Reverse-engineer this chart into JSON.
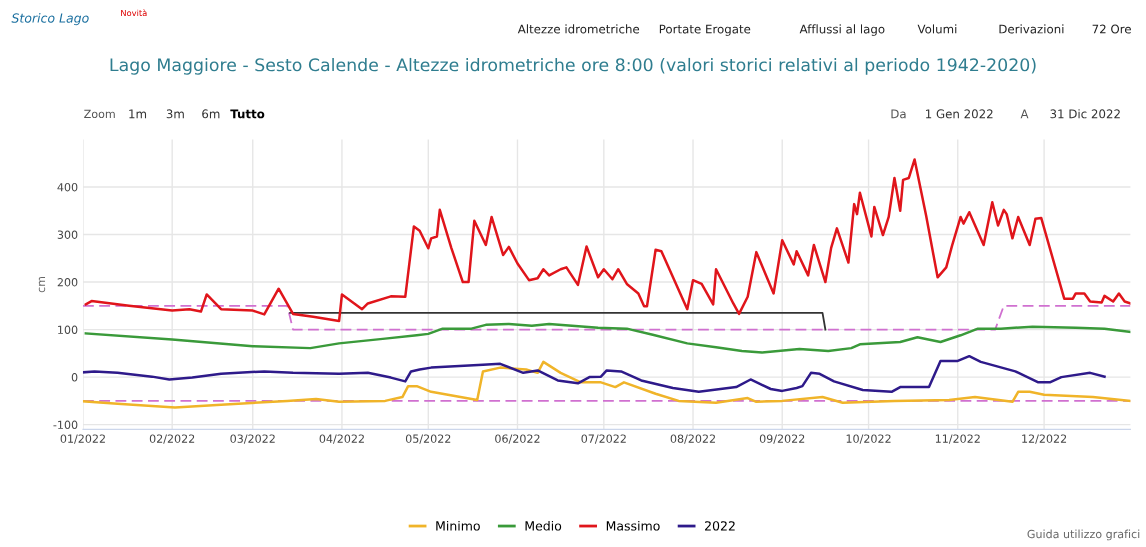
{
  "chart_data": {
    "type": "line",
    "title": "Lago Maggiore - Sesto Calende - Altezze idrometriche ore 8:00 (valori storici relativi al periodo 1942-2020)",
    "ylabel": "cm",
    "xlim": [
      "2022-01-01",
      "2022-12-31"
    ],
    "xticks": [
      {
        "value": "2022-01-01",
        "label": "01/2022"
      },
      {
        "value": "2022-02-01",
        "label": "02/2022"
      },
      {
        "value": "2022-03-01",
        "label": "03/2022"
      },
      {
        "value": "2022-04-01",
        "label": "04/2022"
      },
      {
        "value": "2022-05-01",
        "label": "05/2022"
      },
      {
        "value": "2022-06-01",
        "label": "06/2022"
      },
      {
        "value": "2022-07-01",
        "label": "07/2022"
      },
      {
        "value": "2022-08-01",
        "label": "08/2022"
      },
      {
        "value": "2022-09-01",
        "label": "09/2022"
      },
      {
        "value": "2022-10-01",
        "label": "10/2022"
      },
      {
        "value": "2022-11-01",
        "label": "11/2022"
      },
      {
        "value": "2022-12-01",
        "label": "12/2022"
      }
    ],
    "ylim": [
      -110,
      500
    ],
    "yticks": [
      -100,
      0,
      100,
      200,
      300,
      400
    ],
    "grid": true,
    "legend": "bottom",
    "marker": "none",
    "annotations": [
      "Storico Lago",
      "Novità",
      "Altezze idrometriche",
      "Portate Erogate",
      "Afflussi al lago",
      "Volumi",
      "Derivazioni",
      "72 Ore",
      "Zoom",
      "1m",
      "3m",
      "6m",
      "Tutto",
      "Da",
      "1 Gen 2022",
      "A",
      "31 Dic 2022",
      "Guida utilizzo grafici"
    ],
    "series": [
      {
        "color": "#d070d0",
        "line_style": "dashed",
        "x": [
          "2022-01-01",
          "2022-03-13",
          "2022-03-15",
          "2022-11-14",
          "2022-11-17",
          "2022-12-31"
        ],
        "values": [
          150,
          150,
          100,
          100,
          150,
          150
        ]
      },
      {
        "color": "#d070d0",
        "line_style": "dashed",
        "x": [
          "2022-01-01",
          "2022-12-31"
        ],
        "values": [
          -50,
          -50
        ]
      },
      {
        "color": "#333333",
        "line_style": "solid",
        "x": [
          "2022-03-14",
          "2022-09-15",
          "2022-09-16"
        ],
        "values": [
          135,
          135,
          100
        ]
      },
      {
        "name": "Minimo",
        "color": "#f0b429",
        "line_style": "solid",
        "x": [
          "2022-01-01",
          "2022-01-13",
          "2022-02-02",
          "2022-02-18",
          "2022-03-13",
          "2022-03-23",
          "2022-03-31",
          "2022-04-16",
          "2022-04-22",
          "2022-04-24",
          "2022-04-27",
          "2022-05-02",
          "2022-05-18",
          "2022-05-20",
          "2022-05-26",
          "2022-06-04",
          "2022-06-08",
          "2022-06-10",
          "2022-06-16",
          "2022-06-23",
          "2022-06-30",
          "2022-07-05",
          "2022-07-08",
          "2022-07-19",
          "2022-07-27",
          "2022-08-09",
          "2022-08-20",
          "2022-08-23",
          "2022-09-01",
          "2022-09-15",
          "2022-09-22",
          "2022-10-10",
          "2022-10-29",
          "2022-11-07",
          "2022-11-20",
          "2022-11-22",
          "2022-11-26",
          "2022-12-01",
          "2022-12-18",
          "2022-12-31"
        ],
        "values": [
          -51,
          -56,
          -64,
          -58,
          -50,
          -46,
          -52,
          -50,
          -42,
          -19,
          -19,
          -31,
          -48,
          12,
          20,
          16,
          9,
          32,
          9,
          -11,
          -11,
          -21,
          -11,
          -35,
          -50,
          -54,
          -44,
          -52,
          -50,
          -42,
          -54,
          -50,
          -48,
          -42,
          -52,
          -31,
          -31,
          -37,
          -42,
          -50
        ]
      },
      {
        "name": "Medio",
        "color": "#3a9a3a",
        "line_style": "solid",
        "x": [
          "2022-01-02",
          "2022-02-01",
          "2022-03-01",
          "2022-03-21",
          "2022-03-31",
          "2022-04-16",
          "2022-04-27",
          "2022-05-01",
          "2022-05-06",
          "2022-05-16",
          "2022-05-21",
          "2022-05-29",
          "2022-06-06",
          "2022-06-12",
          "2022-06-29",
          "2022-07-09",
          "2022-07-18",
          "2022-07-30",
          "2022-08-09",
          "2022-08-18",
          "2022-08-25",
          "2022-09-07",
          "2022-09-17",
          "2022-09-25",
          "2022-09-28",
          "2022-10-12",
          "2022-10-18",
          "2022-10-26",
          "2022-11-02",
          "2022-11-08",
          "2022-11-16",
          "2022-11-27",
          "2022-12-12",
          "2022-12-22",
          "2022-12-31"
        ],
        "values": [
          92,
          79,
          65,
          61,
          71,
          81,
          88,
          91,
          102,
          102,
          110,
          112,
          108,
          112,
          104,
          102,
          89,
          71,
          63,
          55,
          52,
          59,
          55,
          61,
          69,
          74,
          84,
          74,
          88,
          102,
          102,
          106,
          104,
          102,
          95
        ]
      },
      {
        "name": "Massimo",
        "color": "#e0151b",
        "line_style": "solid",
        "x": [
          "2022-01-02",
          "2022-01-04",
          "2022-01-17",
          "2022-02-01",
          "2022-02-07",
          "2022-02-11",
          "2022-02-13",
          "2022-02-18",
          "2022-03-01",
          "2022-03-05",
          "2022-03-10",
          "2022-03-15",
          "2022-03-22",
          "2022-03-31",
          "2022-04-01",
          "2022-04-08",
          "2022-04-10",
          "2022-04-18",
          "2022-04-23",
          "2022-04-26",
          "2022-04-28",
          "2022-05-01",
          "2022-05-02",
          "2022-05-04",
          "2022-05-05",
          "2022-05-09",
          "2022-05-13",
          "2022-05-15",
          "2022-05-17",
          "2022-05-21",
          "2022-05-23",
          "2022-05-27",
          "2022-05-29",
          "2022-06-01",
          "2022-06-05",
          "2022-06-08",
          "2022-06-10",
          "2022-06-12",
          "2022-06-16",
          "2022-06-18",
          "2022-06-22",
          "2022-06-25",
          "2022-06-29",
          "2022-07-01",
          "2022-07-04",
          "2022-07-06",
          "2022-07-09",
          "2022-07-13",
          "2022-07-15",
          "2022-07-16",
          "2022-07-19",
          "2022-07-21",
          "2022-07-30",
          "2022-08-01",
          "2022-08-04",
          "2022-08-08",
          "2022-08-09",
          "2022-08-15",
          "2022-08-17",
          "2022-08-20",
          "2022-08-23",
          "2022-08-29",
          "2022-09-01",
          "2022-09-05",
          "2022-09-06",
          "2022-09-10",
          "2022-09-12",
          "2022-09-16",
          "2022-09-18",
          "2022-09-20",
          "2022-09-24",
          "2022-09-26",
          "2022-09-27",
          "2022-09-28",
          "2022-10-02",
          "2022-10-03",
          "2022-10-06",
          "2022-10-08",
          "2022-10-10",
          "2022-10-12",
          "2022-10-13",
          "2022-10-15",
          "2022-10-17",
          "2022-10-21",
          "2022-10-25",
          "2022-10-28",
          "2022-10-30",
          "2022-11-02",
          "2022-11-03",
          "2022-11-05",
          "2022-11-06",
          "2022-11-10",
          "2022-11-13",
          "2022-11-15",
          "2022-11-17",
          "2022-11-18",
          "2022-11-20",
          "2022-11-22",
          "2022-11-26",
          "2022-11-28",
          "2022-11-30",
          "2022-12-08",
          "2022-12-11",
          "2022-12-12",
          "2022-12-15",
          "2022-12-17",
          "2022-12-21",
          "2022-12-22",
          "2022-12-25",
          "2022-12-27",
          "2022-12-29",
          "2022-12-31"
        ],
        "values": [
          153,
          160,
          150,
          140,
          143,
          138,
          174,
          143,
          140,
          132,
          186,
          133,
          127,
          118,
          174,
          143,
          155,
          170,
          169,
          317,
          308,
          271,
          292,
          296,
          352,
          272,
          200,
          200,
          329,
          278,
          337,
          257,
          274,
          239,
          204,
          208,
          227,
          214,
          227,
          231,
          194,
          275,
          210,
          227,
          206,
          227,
          196,
          176,
          149,
          149,
          268,
          265,
          143,
          204,
          196,
          153,
          227,
          155,
          133,
          169,
          263,
          176,
          288,
          237,
          265,
          214,
          278,
          200,
          272,
          313,
          241,
          364,
          343,
          388,
          296,
          358,
          299,
          337,
          419,
          350,
          415,
          419,
          458,
          340,
          210,
          231,
          276,
          337,
          323,
          347,
          333,
          278,
          368,
          319,
          352,
          343,
          292,
          337,
          278,
          333,
          335,
          165,
          165,
          176,
          176,
          159,
          157,
          171,
          159,
          176,
          159,
          155
        ]
      },
      {
        "name": "2022",
        "color": "#2e1a8a",
        "line_style": "solid",
        "x": [
          "2022-01-01",
          "2022-01-05",
          "2022-01-13",
          "2022-01-25",
          "2022-01-31",
          "2022-02-08",
          "2022-02-18",
          "2022-03-05",
          "2022-03-15",
          "2022-03-31",
          "2022-04-10",
          "2022-04-18",
          "2022-04-23",
          "2022-04-25",
          "2022-04-28",
          "2022-05-02",
          "2022-05-20",
          "2022-05-26",
          "2022-06-03",
          "2022-06-08",
          "2022-06-15",
          "2022-06-22",
          "2022-06-26",
          "2022-06-30",
          "2022-07-02",
          "2022-07-07",
          "2022-07-14",
          "2022-07-25",
          "2022-08-03",
          "2022-08-16",
          "2022-08-21",
          "2022-08-28",
          "2022-09-01",
          "2022-09-06",
          "2022-09-08",
          "2022-09-11",
          "2022-09-14",
          "2022-09-19",
          "2022-09-29",
          "2022-10-09",
          "2022-10-12",
          "2022-10-22",
          "2022-10-26",
          "2022-11-01",
          "2022-11-05",
          "2022-11-09",
          "2022-11-21",
          "2022-11-29",
          "2022-12-03",
          "2022-12-07",
          "2022-12-17",
          "2022-12-22"
        ],
        "values": [
          10,
          12,
          9,
          1,
          -5,
          -1,
          7,
          12,
          9,
          7,
          9,
          -1,
          -9,
          12,
          16,
          20,
          26,
          28,
          9,
          14,
          -7,
          -13,
          0,
          1,
          14,
          12,
          -7,
          -23,
          -31,
          -21,
          -5,
          -25,
          -29,
          -23,
          -19,
          9,
          7,
          -9,
          -27,
          -31,
          -21,
          -21,
          34,
          34,
          44,
          32,
          12,
          -11,
          -11,
          0,
          9,
          1
        ]
      }
    ]
  }
}
